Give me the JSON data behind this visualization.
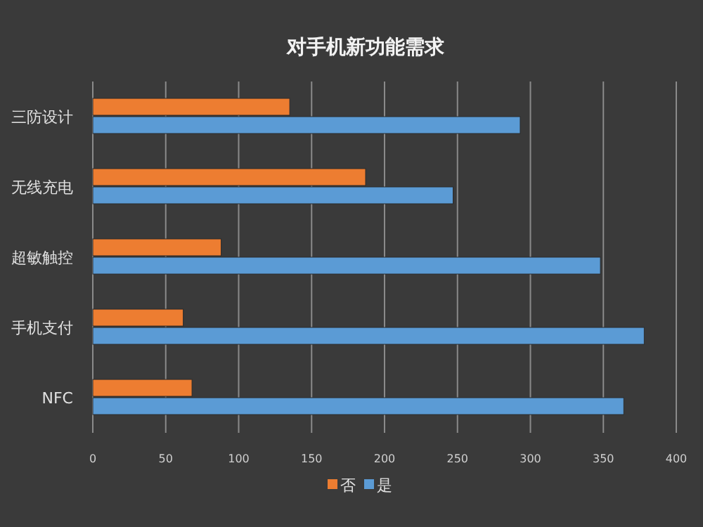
{
  "chart_data": {
    "type": "bar",
    "orientation": "horizontal",
    "title": "对手机新功能需求",
    "categories": [
      "三防设计",
      "无线充电",
      "超敏触控",
      "手机支付",
      "NFC"
    ],
    "series": [
      {
        "name": "否",
        "color": "#ed7d31",
        "values": [
          135,
          187,
          88,
          62,
          68
        ]
      },
      {
        "name": "是",
        "color": "#5b9bd5",
        "values": [
          293,
          247,
          348,
          378,
          364
        ]
      }
    ],
    "xlim": [
      0,
      400
    ],
    "xticks": [
      0,
      50,
      100,
      150,
      200,
      250,
      300,
      350,
      400
    ],
    "grid": "x",
    "legend": "bottom"
  }
}
